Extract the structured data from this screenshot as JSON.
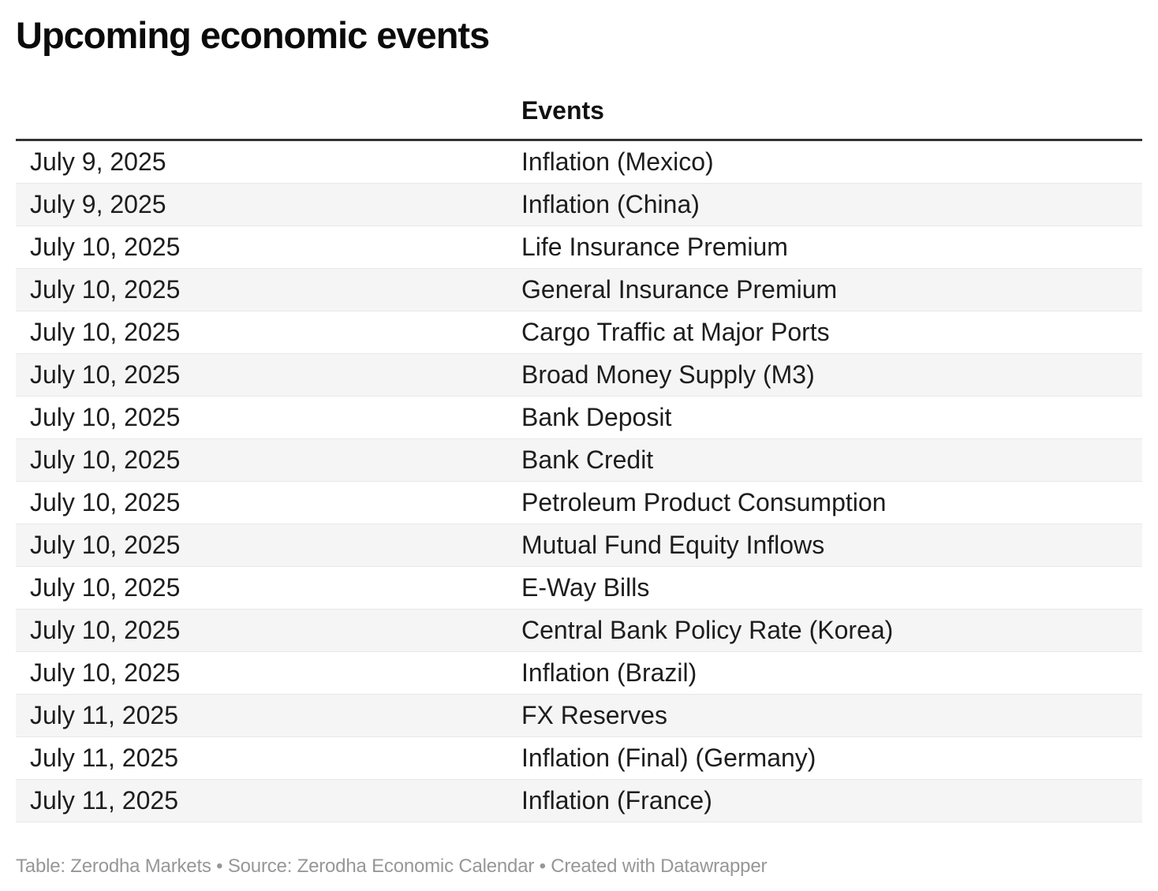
{
  "chart_data": {
    "type": "table",
    "title": "Upcoming economic events",
    "columns": [
      "",
      "Events"
    ],
    "rows": [
      [
        "July 9, 2025",
        "Inflation (Mexico)"
      ],
      [
        "July 9, 2025",
        "Inflation (China)"
      ],
      [
        "July 10, 2025",
        "Life Insurance Premium"
      ],
      [
        "July 10, 2025",
        "General Insurance Premium"
      ],
      [
        "July 10, 2025",
        "Cargo Traffic at Major Ports"
      ],
      [
        "July 10, 2025",
        "Broad Money Supply (M3)"
      ],
      [
        "July 10, 2025",
        "Bank Deposit"
      ],
      [
        "July 10, 2025",
        "Bank Credit"
      ],
      [
        "July 10, 2025",
        "Petroleum Product Consumption"
      ],
      [
        "July 10, 2025",
        "Mutual Fund Equity Inflows"
      ],
      [
        "July 10, 2025",
        "E-Way Bills"
      ],
      [
        "July 10, 2025",
        "Central Bank Policy Rate (Korea)"
      ],
      [
        "July 10, 2025",
        "Inflation (Brazil)"
      ],
      [
        "July 11, 2025",
        "FX Reserves"
      ],
      [
        "July 11, 2025",
        "Inflation (Final) (Germany)"
      ],
      [
        "July 11, 2025",
        "Inflation (France)"
      ]
    ],
    "footnote": "Table: Zerodha Markets • Source: Zerodha Economic Calendar • Created with Datawrapper",
    "layout": {
      "striped": true,
      "header_rule": true,
      "legend": "none",
      "grid": "row-separators"
    }
  },
  "colors": {
    "header_rule": "#333333",
    "row_alt_bg": "#f5f5f5",
    "row_border": "#e8e8e8",
    "text": "#1d1d1d",
    "footer_text": "#979797"
  }
}
